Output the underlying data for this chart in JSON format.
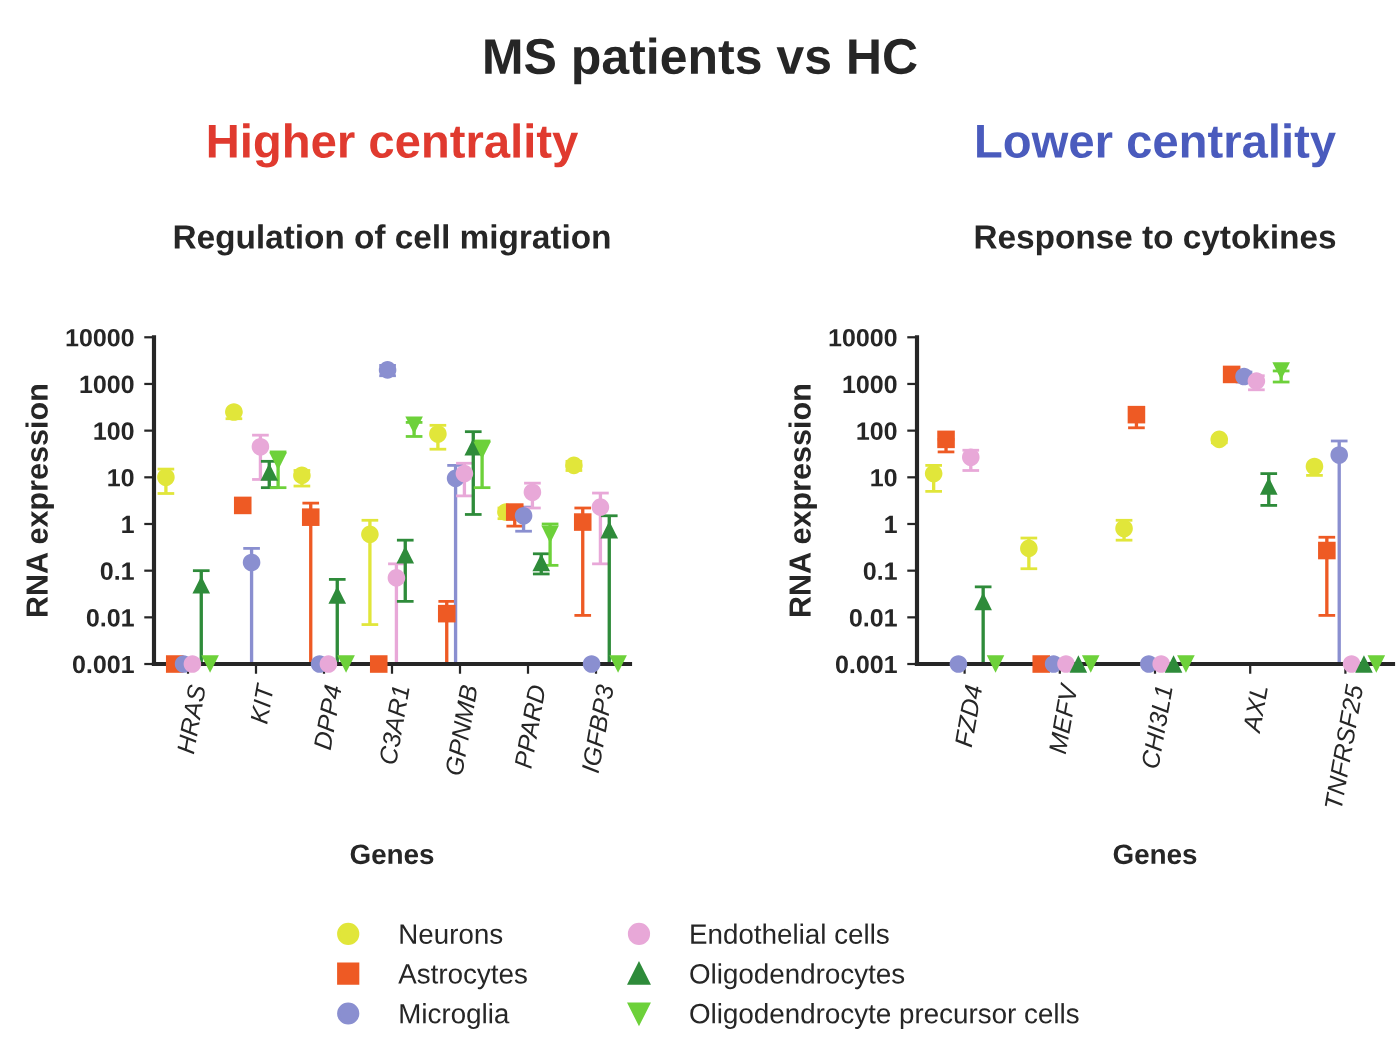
{
  "chart_data": [
    {
      "type": "scatter",
      "title": "Regulation of cell migration",
      "subtitle": "Higher centrality",
      "xlabel": "Genes",
      "ylabel": "RNA expression",
      "log": "y",
      "legend": "bottom",
      "grid": false,
      "annotations": [
        "MS patients vs HC"
      ],
      "categories": [
        "HRAS",
        "KIT",
        "DPP4",
        "C3AR1",
        "GPNMB",
        "PPARD",
        "IGFBP3"
      ],
      "ylim": [
        0.001,
        10000
      ],
      "yticks": [
        0.001,
        0.01,
        0.1,
        1,
        10,
        100,
        1000,
        10000
      ],
      "series": [
        {
          "name": "Neurons",
          "color": "#e1e63a",
          "marker": "circle",
          "values": [
            10,
            250,
            11,
            0.6,
            85,
            1.8,
            18
          ],
          "errors": [
            [
              4.5,
              15
            ],
            [
              180,
              250
            ],
            [
              6.5,
              14
            ],
            [
              0.007,
              1.2
            ],
            [
              40,
              130
            ],
            [
              1.3,
              2.2
            ],
            [
              14,
              22
            ]
          ]
        },
        {
          "name": "Astrocytes",
          "color": "#ee5a24",
          "marker": "square",
          "values": [
            0.001,
            2.5,
            1.4,
            0.001,
            0.012,
            1.8,
            1.1
          ],
          "errors": [
            null,
            null,
            [
              0.001,
              2.8
            ],
            null,
            [
              0.001,
              0.022
            ],
            [
              0.9,
              2.5
            ],
            [
              0.011,
              2.2
            ]
          ]
        },
        {
          "name": "Microglia",
          "color": "#8a8fd0",
          "marker": "circle",
          "values": [
            0.001,
            0.15,
            0.001,
            2000,
            9.5,
            1.5,
            0.001
          ],
          "errors": [
            null,
            [
              0.001,
              0.3
            ],
            null,
            [
              1500,
              2500
            ],
            [
              0.001,
              18
            ],
            [
              0.7,
              2.3
            ],
            null
          ]
        },
        {
          "name": "Endothelial cells",
          "color": "#e8a8d8",
          "marker": "circle",
          "values": [
            0.001,
            45,
            0.001,
            0.07,
            12,
            4.8,
            2.3
          ],
          "errors": [
            null,
            [
              9,
              80
            ],
            null,
            [
              0.001,
              0.14
            ],
            [
              4,
              20
            ],
            [
              2.2,
              7.5
            ],
            [
              0.14,
              4.6
            ]
          ]
        },
        {
          "name": "Oligodendrocytes",
          "color": "#2e8b3a",
          "marker": "triangle",
          "values": [
            0.05,
            13,
            0.03,
            0.22,
            45,
            0.15,
            0.75
          ],
          "errors": [
            [
              0.001,
              0.1
            ],
            [
              6,
              22
            ],
            [
              0.001,
              0.065
            ],
            [
              0.022,
              0.45
            ],
            [
              1.6,
              95
            ],
            [
              0.085,
              0.23
            ],
            [
              0.001,
              1.5
            ]
          ]
        },
        {
          "name": "Oligodendrocyte precursor cells",
          "color": "#6dd13a",
          "marker": "triangle_down",
          "values": [
            0.001,
            22,
            0.001,
            130,
            38,
            0.6,
            0.001
          ],
          "errors": [
            null,
            [
              6,
              35
            ],
            null,
            [
              75,
              150
            ],
            [
              6,
              60
            ],
            [
              0.13,
              1
            ],
            null
          ]
        }
      ]
    },
    {
      "type": "scatter",
      "title": "Response to cytokines",
      "subtitle": "Lower centrality",
      "xlabel": "Genes",
      "ylabel": "RNA expression",
      "log": "y",
      "grid": false,
      "categories": [
        "FZD4",
        "MEFV",
        "CHI3L1",
        "AXL",
        "TNFRSF25"
      ],
      "ylim": [
        0.001,
        10000
      ],
      "yticks": [
        0.001,
        0.01,
        0.1,
        1,
        10,
        100,
        1000,
        10000
      ],
      "series": [
        {
          "color": "#e1e63a",
          "marker": "circle",
          "values": [
            12,
            0.3,
            0.8,
            65,
            17
          ],
          "errors": [
            [
              5,
              18
            ],
            [
              0.11,
              0.5
            ],
            [
              0.45,
              1.2
            ],
            [
              55,
              65
            ],
            [
              11,
              17
            ]
          ]
        },
        {
          "color": "#ee5a24",
          "marker": "square",
          "values": [
            65,
            0.001,
            220,
            1600,
            0.27
          ],
          "errors": [
            [
              35,
              65
            ],
            null,
            [
              115,
              220
            ],
            null,
            [
              0.011,
              0.52
            ]
          ]
        },
        {
          "color": "#8a8fd0",
          "marker": "circle",
          "values": [
            0.001,
            0.001,
            0.001,
            1450,
            30
          ],
          "errors": [
            null,
            null,
            null,
            [
              1100,
              1800
            ],
            [
              0.001,
              60
            ]
          ]
        },
        {
          "color": "#e8a8d8",
          "marker": "circle",
          "values": [
            27,
            0.001,
            0.001,
            1150,
            0.001
          ],
          "errors": [
            [
              14,
              38
            ],
            null,
            null,
            [
              750,
              1500
            ],
            null
          ]
        },
        {
          "color": "#2e8b3a",
          "marker": "triangle",
          "values": [
            0.022,
            0.001,
            0.001,
            6.5,
            0.001
          ],
          "errors": [
            [
              0.001,
              0.045
            ],
            null,
            null,
            [
              2.5,
              12
            ],
            null
          ]
        },
        {
          "color": "#6dd13a",
          "marker": "triangle_down",
          "values": [
            0.001,
            0.001,
            0.001,
            1900,
            0.001
          ],
          "errors": [
            null,
            null,
            null,
            [
              1100,
              1900
            ],
            null
          ]
        }
      ]
    }
  ]
}
